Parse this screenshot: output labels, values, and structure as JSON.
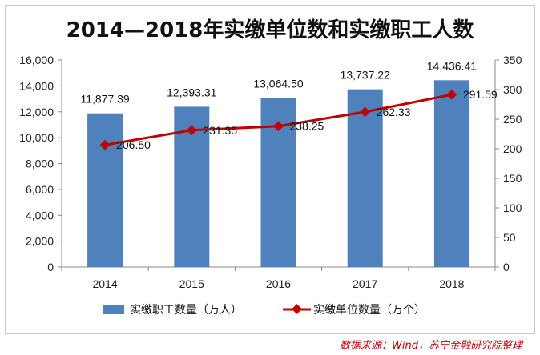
{
  "chart_data": {
    "type": "bar",
    "title": "2014—2018年实缴单位数和实缴职工人数",
    "categories": [
      "2014",
      "2015",
      "2016",
      "2017",
      "2018"
    ],
    "series": [
      {
        "name": "实缴职工数量（万人）",
        "type": "bar",
        "axis": "left",
        "color": "#4f81bd",
        "values": [
          11877.39,
          12393.31,
          13064.5,
          13737.22,
          14436.41
        ],
        "labels": [
          "11,877.39",
          "12,393.31",
          "13,064.50",
          "13,737.22",
          "14,436.41"
        ]
      },
      {
        "name": "实缴单位数量（万个）",
        "type": "line",
        "axis": "right",
        "color": "#c00000",
        "values": [
          206.5,
          231.35,
          238.25,
          262.33,
          291.59
        ],
        "labels": [
          "206.50",
          "231.35",
          "238.25",
          "262.33",
          "291.59"
        ]
      }
    ],
    "y_left": {
      "min": 0,
      "max": 16000,
      "ticks": [
        "0",
        "2,000",
        "4,000",
        "6,000",
        "8,000",
        "10,000",
        "12,000",
        "14,000",
        "16,000"
      ]
    },
    "y_right": {
      "min": 0,
      "max": 350,
      "ticks": [
        "0",
        "50",
        "100",
        "150",
        "200",
        "250",
        "300",
        "350"
      ]
    },
    "grid": false,
    "legend_position": "bottom"
  },
  "source": "数据来源：Wind，苏宁金融研究院整理"
}
